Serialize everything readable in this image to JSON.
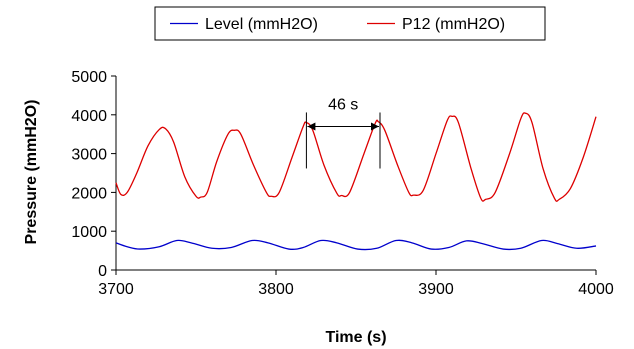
{
  "chart_data": {
    "type": "line",
    "title": "",
    "xlabel": "Time (s)",
    "ylabel": "Pressure (mmH2O)",
    "xlim": [
      3700,
      4000
    ],
    "ylim": [
      0,
      5000
    ],
    "x_ticks": [
      3700,
      3800,
      3900,
      4000
    ],
    "y_ticks": [
      0,
      1000,
      2000,
      3000,
      4000,
      5000
    ],
    "grid": false,
    "legend_position": "top",
    "series": [
      {
        "name": "Level (mmH2O)",
        "color": "#0000cc",
        "x": [
          3700,
          3707,
          3715,
          3727,
          3738,
          3747,
          3760,
          3772,
          3785,
          3795,
          3808,
          3817,
          3828,
          3838,
          3851,
          3863,
          3875,
          3885,
          3897,
          3908,
          3919,
          3929,
          3942,
          3953,
          3966,
          3976,
          3988,
          4000
        ],
        "values": [
          700,
          600,
          540,
          600,
          760,
          700,
          560,
          580,
          760,
          700,
          540,
          580,
          760,
          700,
          540,
          560,
          760,
          700,
          540,
          580,
          750,
          680,
          540,
          560,
          760,
          680,
          560,
          620
        ]
      },
      {
        "name": "P12 (mmH2O)",
        "color": "#dd0000",
        "x": [
          3700,
          3703,
          3707,
          3713,
          3720,
          3727,
          3731,
          3736,
          3743,
          3750,
          3753,
          3757,
          3763,
          3770,
          3774,
          3778,
          3786,
          3794,
          3797,
          3802,
          3810,
          3817,
          3819,
          3823,
          3830,
          3838,
          3841,
          3846,
          3855,
          3862,
          3864,
          3868,
          3876,
          3883,
          3886,
          3892,
          3900,
          3907,
          3910,
          3914,
          3922,
          3928,
          3931,
          3937,
          3946,
          3953,
          3956,
          3960,
          3967,
          3974,
          3977,
          3984,
          3992,
          4000
        ],
        "values": [
          2250,
          1950,
          2000,
          2500,
          3200,
          3620,
          3640,
          3300,
          2400,
          1900,
          1880,
          2000,
          2800,
          3500,
          3600,
          3500,
          2700,
          2000,
          1900,
          2000,
          2900,
          3700,
          3800,
          3600,
          2700,
          1980,
          1920,
          2000,
          3000,
          3780,
          3820,
          3600,
          2700,
          2000,
          1930,
          2050,
          3000,
          3850,
          3960,
          3800,
          2600,
          1850,
          1820,
          2000,
          3000,
          3900,
          4040,
          3800,
          2600,
          1850,
          1820,
          2100,
          2900,
          3950
        ]
      }
    ],
    "annotations": [
      {
        "text": "46 s",
        "x_start": 3819,
        "x_end": 3865,
        "y": 3700
      }
    ]
  }
}
